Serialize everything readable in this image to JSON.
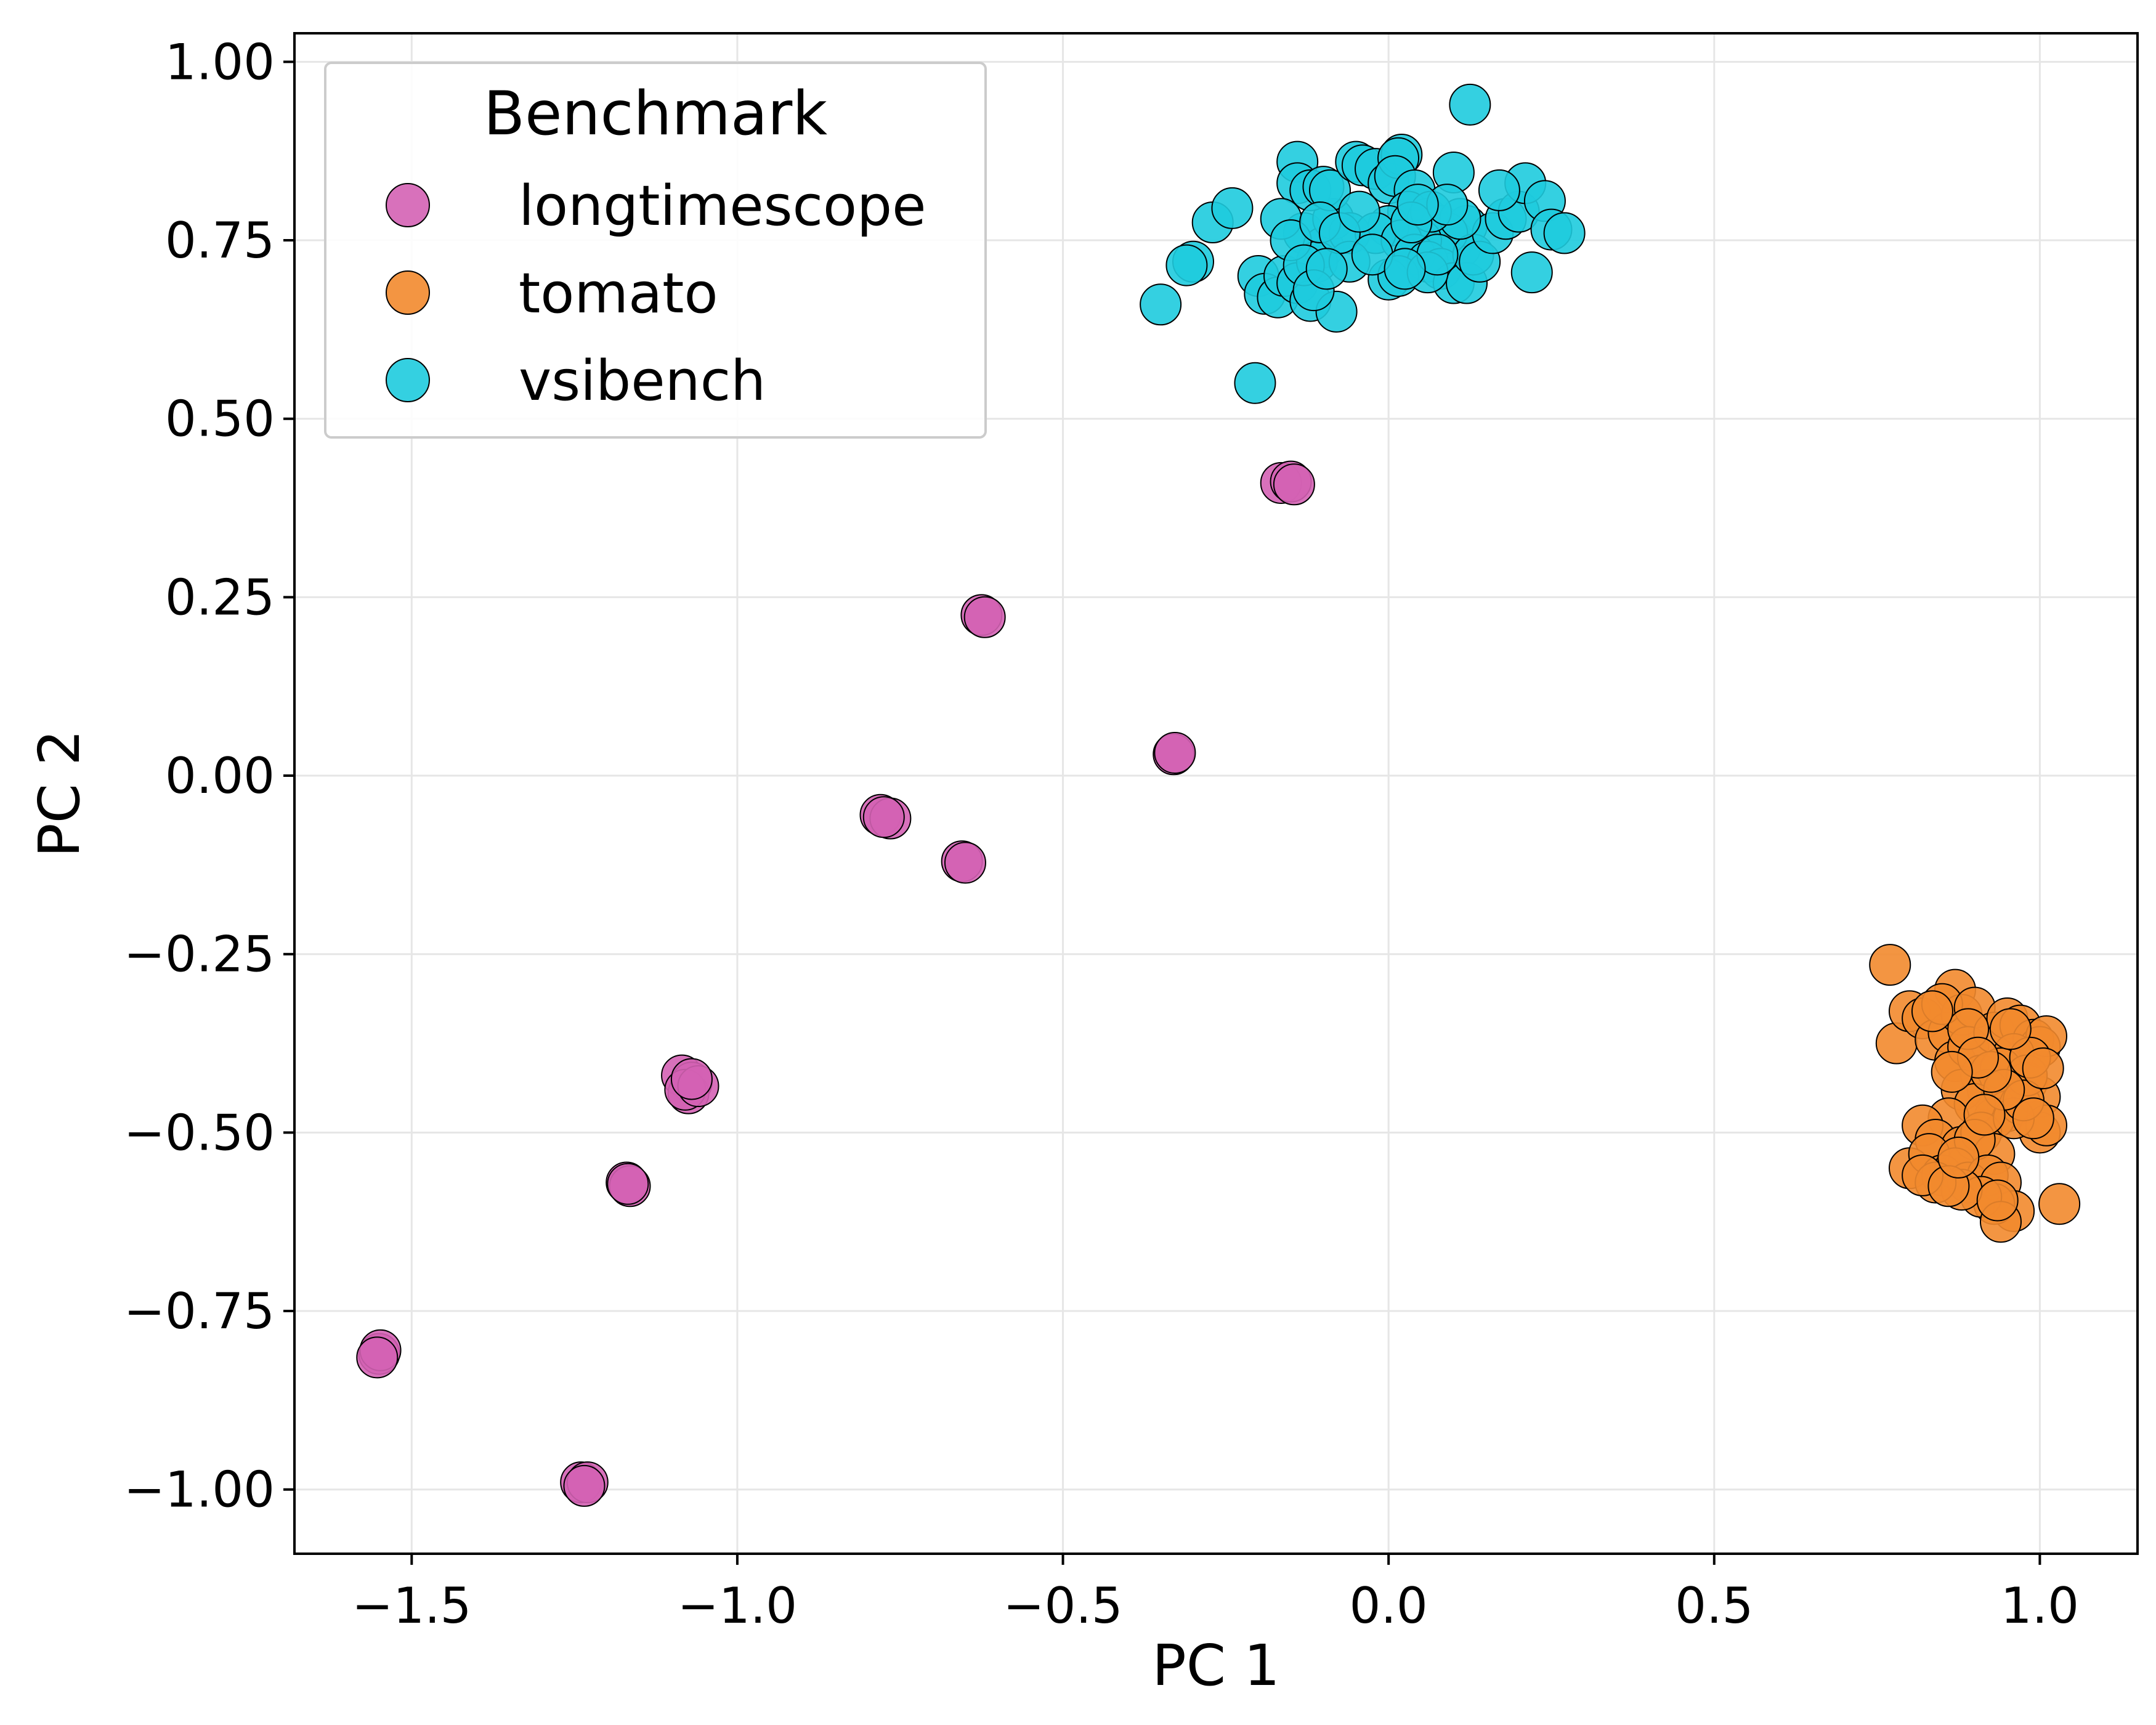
{
  "chart_data": {
    "type": "scatter",
    "title": "",
    "xlabel": "PC 1",
    "ylabel": "PC 2",
    "xlim": [
      -1.68,
      1.15
    ],
    "ylim": [
      -1.09,
      1.04
    ],
    "grid": true,
    "xticks": [
      {
        "value": -1.5,
        "label": "−1.5"
      },
      {
        "value": -1.0,
        "label": "−1.0"
      },
      {
        "value": -0.5,
        "label": "−0.5"
      },
      {
        "value": 0.0,
        "label": "0.0"
      },
      {
        "value": 0.5,
        "label": "0.5"
      },
      {
        "value": 1.0,
        "label": "1.0"
      }
    ],
    "yticks": [
      {
        "value": 1.0,
        "label": "1.00"
      },
      {
        "value": 0.75,
        "label": "0.75"
      },
      {
        "value": 0.5,
        "label": "0.50"
      },
      {
        "value": 0.25,
        "label": "0.25"
      },
      {
        "value": 0.0,
        "label": "0.00"
      },
      {
        "value": -0.25,
        "label": "−0.25"
      },
      {
        "value": -0.5,
        "label": "−0.50"
      },
      {
        "value": -0.75,
        "label": "−0.75"
      },
      {
        "value": -1.0,
        "label": "−1.00"
      }
    ],
    "legend": {
      "title": "Benchmark",
      "position": "top-left"
    },
    "series": [
      {
        "name": "longtimescope",
        "color": "#d462b4",
        "points": [
          [
            -1.55,
            -0.81
          ],
          [
            -1.548,
            -0.805
          ],
          [
            -1.553,
            -0.815
          ],
          [
            -1.24,
            -0.99
          ],
          [
            -1.23,
            -0.99
          ],
          [
            -1.235,
            -0.995
          ],
          [
            -1.17,
            -0.57
          ],
          [
            -1.165,
            -0.575
          ],
          [
            -1.168,
            -0.572
          ],
          [
            -1.085,
            -0.42
          ],
          [
            -1.07,
            -0.43
          ],
          [
            -1.075,
            -0.445
          ],
          [
            -1.08,
            -0.44
          ],
          [
            -1.06,
            -0.435
          ],
          [
            -1.07,
            -0.425
          ],
          [
            -0.78,
            -0.055
          ],
          [
            -0.765,
            -0.06
          ],
          [
            -0.775,
            -0.058
          ],
          [
            -0.655,
            -0.12
          ],
          [
            -0.65,
            -0.122
          ],
          [
            -0.625,
            0.225
          ],
          [
            -0.62,
            0.222
          ],
          [
            -0.33,
            0.03
          ],
          [
            -0.328,
            0.032
          ],
          [
            -0.165,
            0.41
          ],
          [
            -0.15,
            0.412
          ],
          [
            -0.145,
            0.408
          ]
        ]
      },
      {
        "name": "tomato",
        "color": "#f28a2e",
        "points": [
          [
            0.77,
            -0.265
          ],
          [
            0.78,
            -0.375
          ],
          [
            0.8,
            -0.33
          ],
          [
            0.82,
            -0.34
          ],
          [
            0.84,
            -0.37
          ],
          [
            0.86,
            -0.36
          ],
          [
            0.87,
            -0.3
          ],
          [
            0.88,
            -0.335
          ],
          [
            0.85,
            -0.32
          ],
          [
            0.9,
            -0.325
          ],
          [
            0.87,
            -0.4
          ],
          [
            0.89,
            -0.38
          ],
          [
            0.91,
            -0.42
          ],
          [
            0.93,
            -0.36
          ],
          [
            0.95,
            -0.34
          ],
          [
            0.97,
            -0.35
          ],
          [
            0.99,
            -0.37
          ],
          [
            1.0,
            -0.38
          ],
          [
            1.01,
            -0.365
          ],
          [
            0.96,
            -0.39
          ],
          [
            0.94,
            -0.41
          ],
          [
            0.92,
            -0.44
          ],
          [
            0.98,
            -0.43
          ],
          [
            1.0,
            -0.45
          ],
          [
            0.95,
            -0.47
          ],
          [
            0.93,
            -0.48
          ],
          [
            0.97,
            -0.46
          ],
          [
            1.0,
            -0.5
          ],
          [
            1.01,
            -0.49
          ],
          [
            0.98,
            -0.42
          ],
          [
            0.88,
            -0.44
          ],
          [
            0.9,
            -0.46
          ],
          [
            0.86,
            -0.48
          ],
          [
            0.82,
            -0.49
          ],
          [
            0.84,
            -0.51
          ],
          [
            0.88,
            -0.52
          ],
          [
            0.91,
            -0.5
          ],
          [
            0.93,
            -0.53
          ],
          [
            0.96,
            -0.48
          ],
          [
            0.9,
            -0.51
          ],
          [
            0.8,
            -0.55
          ],
          [
            0.83,
            -0.53
          ],
          [
            0.85,
            -0.56
          ],
          [
            0.87,
            -0.55
          ],
          [
            0.89,
            -0.57
          ],
          [
            0.92,
            -0.56
          ],
          [
            0.94,
            -0.57
          ],
          [
            0.96,
            -0.61
          ],
          [
            0.93,
            -0.6
          ],
          [
            0.91,
            -0.59
          ],
          [
            0.88,
            -0.58
          ],
          [
            0.84,
            -0.57
          ],
          [
            0.82,
            -0.56
          ],
          [
            1.03,
            -0.6
          ],
          [
            0.94,
            -0.625
          ],
          [
            0.86,
            -0.575
          ],
          [
            0.975,
            -0.455
          ],
          [
            0.985,
            -0.395
          ],
          [
            0.945,
            -0.44
          ],
          [
            0.925,
            -0.415
          ],
          [
            0.89,
            -0.355
          ],
          [
            0.835,
            -0.33
          ],
          [
            0.905,
            -0.395
          ],
          [
            1.005,
            -0.41
          ],
          [
            0.955,
            -0.355
          ],
          [
            0.99,
            -0.48
          ],
          [
            0.865,
            -0.415
          ],
          [
            0.915,
            -0.475
          ],
          [
            0.875,
            -0.535
          ],
          [
            0.935,
            -0.595
          ]
        ]
      },
      {
        "name": "vsibench",
        "color": "#1ecbde",
        "points": [
          [
            0.125,
            0.94
          ],
          [
            -0.35,
            0.66
          ],
          [
            -0.3,
            0.72
          ],
          [
            -0.31,
            0.715
          ],
          [
            -0.27,
            0.775
          ],
          [
            -0.24,
            0.795
          ],
          [
            -0.2,
            0.7
          ],
          [
            -0.205,
            0.55
          ],
          [
            -0.19,
            0.675
          ],
          [
            -0.17,
            0.67
          ],
          [
            -0.16,
            0.7
          ],
          [
            -0.14,
            0.69
          ],
          [
            -0.12,
            0.665
          ],
          [
            -0.08,
            0.65
          ],
          [
            -0.13,
            0.76
          ],
          [
            -0.1,
            0.74
          ],
          [
            -0.11,
            0.72
          ],
          [
            -0.085,
            0.78
          ],
          [
            -0.06,
            0.76
          ],
          [
            -0.14,
            0.86
          ],
          [
            -0.14,
            0.83
          ],
          [
            -0.12,
            0.82
          ],
          [
            -0.1,
            0.825
          ],
          [
            -0.09,
            0.82
          ],
          [
            -0.05,
            0.86
          ],
          [
            -0.04,
            0.855
          ],
          [
            -0.02,
            0.85
          ],
          [
            0.0,
            0.83
          ],
          [
            0.02,
            0.87
          ],
          [
            0.015,
            0.865
          ],
          [
            0.01,
            0.84
          ],
          [
            0.04,
            0.82
          ],
          [
            0.03,
            0.79
          ],
          [
            0.06,
            0.78
          ],
          [
            0.08,
            0.77
          ],
          [
            0.1,
            0.75
          ],
          [
            0.11,
            0.74
          ],
          [
            0.12,
            0.77
          ],
          [
            0.09,
            0.76
          ],
          [
            0.05,
            0.75
          ],
          [
            0.0,
            0.77
          ],
          [
            -0.02,
            0.76
          ],
          [
            0.02,
            0.75
          ],
          [
            0.04,
            0.73
          ],
          [
            0.06,
            0.72
          ],
          [
            0.08,
            0.71
          ],
          [
            0.1,
            0.69
          ],
          [
            0.12,
            0.69
          ],
          [
            0.13,
            0.73
          ],
          [
            0.14,
            0.72
          ],
          [
            0.16,
            0.76
          ],
          [
            0.18,
            0.78
          ],
          [
            0.2,
            0.79
          ],
          [
            0.21,
            0.83
          ],
          [
            0.24,
            0.805
          ],
          [
            0.17,
            0.82
          ],
          [
            0.22,
            0.705
          ],
          [
            0.25,
            0.765
          ],
          [
            0.27,
            0.76
          ],
          [
            0.1,
            0.845
          ],
          [
            0.0,
            0.695
          ],
          [
            0.015,
            0.7
          ],
          [
            -0.06,
            0.72
          ],
          [
            -0.165,
            0.78
          ],
          [
            -0.15,
            0.75
          ],
          [
            -0.13,
            0.715
          ],
          [
            -0.105,
            0.775
          ],
          [
            -0.075,
            0.76
          ],
          [
            0.06,
            0.705
          ],
          [
            0.11,
            0.78
          ],
          [
            0.065,
            0.79
          ],
          [
            -0.025,
            0.73
          ],
          [
            0.035,
            0.775
          ],
          [
            -0.115,
            0.68
          ],
          [
            0.09,
            0.8
          ],
          [
            0.045,
            0.8
          ],
          [
            -0.045,
            0.79
          ],
          [
            0.075,
            0.73
          ],
          [
            -0.095,
            0.71
          ],
          [
            0.025,
            0.71
          ]
        ]
      }
    ]
  }
}
